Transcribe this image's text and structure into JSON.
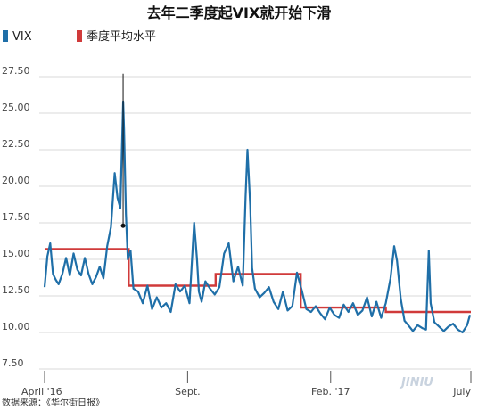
{
  "chart_data": {
    "type": "line",
    "title": "去年二季度起VIX就开始下滑",
    "legend": [
      {
        "name": "VIX",
        "color": "#1f6fa8"
      },
      {
        "name": "季度平均水平",
        "color": "#d03a3a"
      }
    ],
    "yticks": [
      "27.50",
      "25.00",
      "22.50",
      "20.00",
      "17.50",
      "15.00",
      "12.50",
      "10.00",
      "7.50"
    ],
    "ylim": [
      7.5,
      27.5
    ],
    "xticks": [
      {
        "label": "April '16",
        "x": "2016-04-01"
      },
      {
        "label": "Sept.",
        "x": "2016-09-01"
      },
      {
        "label": "Feb. '17",
        "x": "2017-02-01"
      },
      {
        "label": "July",
        "x": "2017-07-01"
      }
    ],
    "xlim": [
      "2016-04-01",
      "2017-07-01"
    ],
    "series": [
      {
        "name": "VIX",
        "color": "#1f6fa8",
        "x": [
          "2016-04-01",
          "2016-04-04",
          "2016-04-07",
          "2016-04-10",
          "2016-04-13",
          "2016-04-16",
          "2016-04-20",
          "2016-04-24",
          "2016-04-28",
          "2016-05-02",
          "2016-05-06",
          "2016-05-10",
          "2016-05-14",
          "2016-05-18",
          "2016-05-22",
          "2016-05-26",
          "2016-05-30",
          "2016-06-03",
          "2016-06-07",
          "2016-06-11",
          "2016-06-15",
          "2016-06-18",
          "2016-06-21",
          "2016-06-24",
          "2016-06-25",
          "2016-06-27",
          "2016-06-29",
          "2016-07-02",
          "2016-07-05",
          "2016-07-10",
          "2016-07-15",
          "2016-07-20",
          "2016-07-25",
          "2016-07-30",
          "2016-08-04",
          "2016-08-09",
          "2016-08-14",
          "2016-08-19",
          "2016-08-24",
          "2016-08-29",
          "2016-09-03",
          "2016-09-08",
          "2016-09-11",
          "2016-09-13",
          "2016-09-16",
          "2016-09-20",
          "2016-09-25",
          "2016-09-30",
          "2016-10-05",
          "2016-10-10",
          "2016-10-15",
          "2016-10-20",
          "2016-10-25",
          "2016-10-30",
          "2016-11-02",
          "2016-11-04",
          "2016-11-07",
          "2016-11-09",
          "2016-11-12",
          "2016-11-17",
          "2016-11-22",
          "2016-11-27",
          "2016-12-02",
          "2016-12-07",
          "2016-12-12",
          "2016-12-17",
          "2016-12-22",
          "2016-12-27",
          "2017-01-01",
          "2017-01-06",
          "2017-01-11",
          "2017-01-16",
          "2017-01-21",
          "2017-01-26",
          "2017-01-31",
          "2017-02-05",
          "2017-02-10",
          "2017-02-15",
          "2017-02-20",
          "2017-02-25",
          "2017-03-02",
          "2017-03-07",
          "2017-03-12",
          "2017-03-17",
          "2017-03-22",
          "2017-03-27",
          "2017-04-01",
          "2017-04-06",
          "2017-04-10",
          "2017-04-13",
          "2017-04-17",
          "2017-04-21",
          "2017-04-25",
          "2017-04-30",
          "2017-05-05",
          "2017-05-10",
          "2017-05-14",
          "2017-05-17",
          "2017-05-19",
          "2017-05-23",
          "2017-05-28",
          "2017-06-02",
          "2017-06-07",
          "2017-06-12",
          "2017-06-17",
          "2017-06-22",
          "2017-06-27",
          "2017-06-30"
        ],
        "values": [
          13.1,
          15.2,
          16.1,
          14.0,
          13.6,
          13.3,
          14.0,
          15.1,
          13.9,
          15.4,
          14.3,
          13.9,
          15.1,
          14.0,
          13.3,
          13.8,
          14.5,
          13.7,
          15.9,
          17.2,
          20.9,
          19.2,
          18.5,
          25.8,
          23.9,
          18.1,
          15.0,
          15.6,
          13.0,
          12.8,
          12.0,
          13.2,
          11.6,
          12.4,
          11.7,
          12.0,
          11.4,
          13.3,
          12.8,
          13.2,
          12.0,
          17.5,
          15.0,
          12.8,
          12.1,
          13.5,
          13.0,
          12.6,
          13.1,
          15.4,
          16.1,
          13.5,
          14.5,
          13.2,
          19.3,
          22.5,
          18.7,
          14.4,
          13.0,
          12.4,
          12.7,
          13.1,
          12.1,
          11.6,
          12.8,
          11.5,
          11.8,
          14.1,
          12.9,
          11.6,
          11.4,
          11.8,
          11.3,
          10.9,
          11.7,
          11.2,
          11.0,
          11.9,
          11.4,
          12.0,
          11.2,
          11.5,
          12.4,
          11.1,
          12.1,
          11.0,
          12.0,
          13.7,
          15.9,
          14.9,
          12.3,
          10.8,
          10.5,
          10.1,
          10.5,
          10.3,
          10.2,
          15.6,
          12.0,
          10.7,
          10.4,
          10.1,
          10.4,
          10.6,
          10.2,
          10.0,
          10.5,
          11.2
        ]
      },
      {
        "name": "季度平均水平",
        "color": "#d03a3a",
        "steps": [
          {
            "x0": "2016-04-01",
            "x1": "2016-06-30",
            "value": 15.7
          },
          {
            "x0": "2016-06-30",
            "x1": "2016-10-01",
            "value": 13.2
          },
          {
            "x0": "2016-10-01",
            "x1": "2016-12-31",
            "value": 14.0
          },
          {
            "x0": "2016-12-31",
            "x1": "2017-04-01",
            "value": 11.7
          },
          {
            "x0": "2017-04-01",
            "x1": "2017-07-01",
            "value": 11.4
          }
        ]
      }
    ],
    "annotations": [
      {
        "type": "vertical-marker",
        "x": "2016-06-24",
        "from": 27.7,
        "to": 17.3
      }
    ],
    "grid": "horizontal",
    "source": "数据来源：《华尔街日报》",
    "watermark": "JINIU"
  }
}
